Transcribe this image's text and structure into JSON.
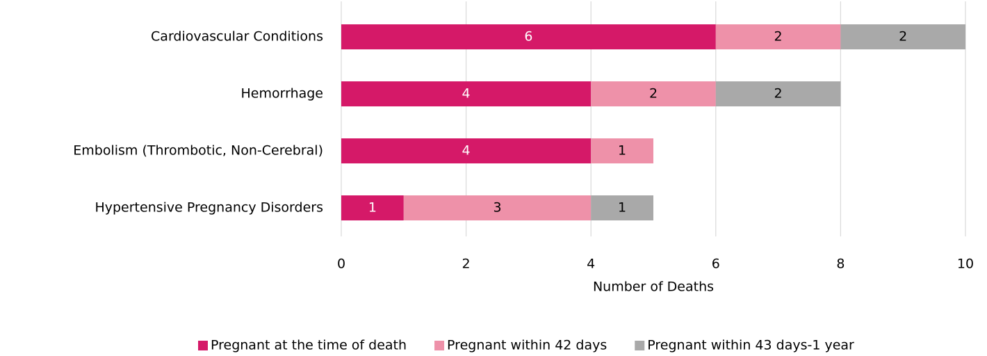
{
  "chart_data": {
    "type": "stacked-bar-horizontal",
    "categories": [
      "Cardiovascular Conditions",
      "Hemorrhage",
      "Embolism (Thrombotic, Non-Cerebral)",
      "Hypertensive Pregnancy Disorders"
    ],
    "series": [
      {
        "name": "Pregnant at the time of death",
        "color": "#d51968",
        "label_color": "#ffffff",
        "values": [
          6,
          4,
          4,
          1
        ]
      },
      {
        "name": "Pregnant within 42 days",
        "color": "#ee91a9",
        "label_color": "#000000",
        "values": [
          2,
          2,
          1,
          3
        ]
      },
      {
        "name": "Pregnant within 43 days-1 year",
        "color": "#a9a9a9",
        "label_color": "#000000",
        "values": [
          2,
          2,
          null,
          1
        ]
      }
    ],
    "xlabel": "Number of Deaths",
    "xlim": [
      0,
      10
    ],
    "xticks": [
      0,
      2,
      4,
      6,
      8,
      10
    ],
    "grid": true,
    "legend": "bottom"
  }
}
